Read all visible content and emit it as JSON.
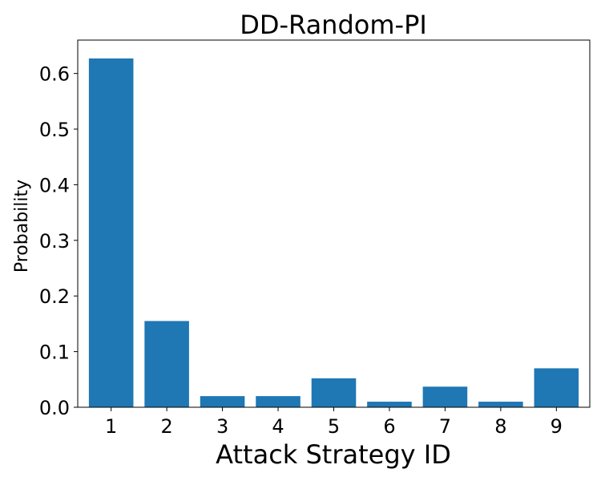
{
  "chart_data": {
    "type": "bar",
    "title": "DD-Random-PI",
    "xlabel": "Attack Strategy ID",
    "ylabel": "Probability",
    "categories": [
      "1",
      "2",
      "3",
      "4",
      "5",
      "6",
      "7",
      "8",
      "9"
    ],
    "values": [
      0.627,
      0.155,
      0.02,
      0.02,
      0.052,
      0.01,
      0.037,
      0.01,
      0.07
    ],
    "ylim": [
      0,
      0.66
    ],
    "yticks": [
      "0.0",
      "0.1",
      "0.2",
      "0.3",
      "0.4",
      "0.5",
      "0.6"
    ],
    "grid": false,
    "bar_color": "#1f77b4"
  }
}
